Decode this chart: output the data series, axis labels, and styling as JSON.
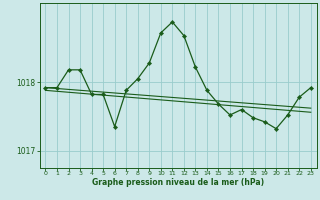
{
  "xlabel": "Graphe pression niveau de la mer (hPa)",
  "xlim": [
    -0.5,
    23.5
  ],
  "ylim": [
    1016.75,
    1019.15
  ],
  "yticks": [
    1017,
    1018
  ],
  "xticks": [
    0,
    1,
    2,
    3,
    4,
    5,
    6,
    7,
    8,
    9,
    10,
    11,
    12,
    13,
    14,
    15,
    16,
    17,
    18,
    19,
    20,
    21,
    22,
    23
  ],
  "bg_color": "#cce8e8",
  "grid_color": "#99cccc",
  "line_color": "#1a5c1a",
  "marker_color": "#1a5c1a",
  "series_main": {
    "x": [
      0,
      1,
      2,
      3,
      4,
      5,
      6,
      7,
      8,
      9,
      10,
      11,
      12,
      13,
      14,
      15,
      16,
      17,
      18,
      19,
      20,
      21,
      22,
      23
    ],
    "y": [
      1017.92,
      1017.92,
      1018.18,
      1018.18,
      1017.82,
      1017.82,
      1017.35,
      1017.88,
      1018.05,
      1018.28,
      1018.72,
      1018.88,
      1018.68,
      1018.22,
      1017.88,
      1017.68,
      1017.52,
      1017.6,
      1017.48,
      1017.42,
      1017.32,
      1017.52,
      1017.78,
      1017.92
    ]
  },
  "line1": {
    "x": [
      0,
      23
    ],
    "y": [
      1017.92,
      1017.62
    ]
  },
  "line2": {
    "x": [
      0,
      23
    ],
    "y": [
      1017.88,
      1017.56
    ]
  }
}
